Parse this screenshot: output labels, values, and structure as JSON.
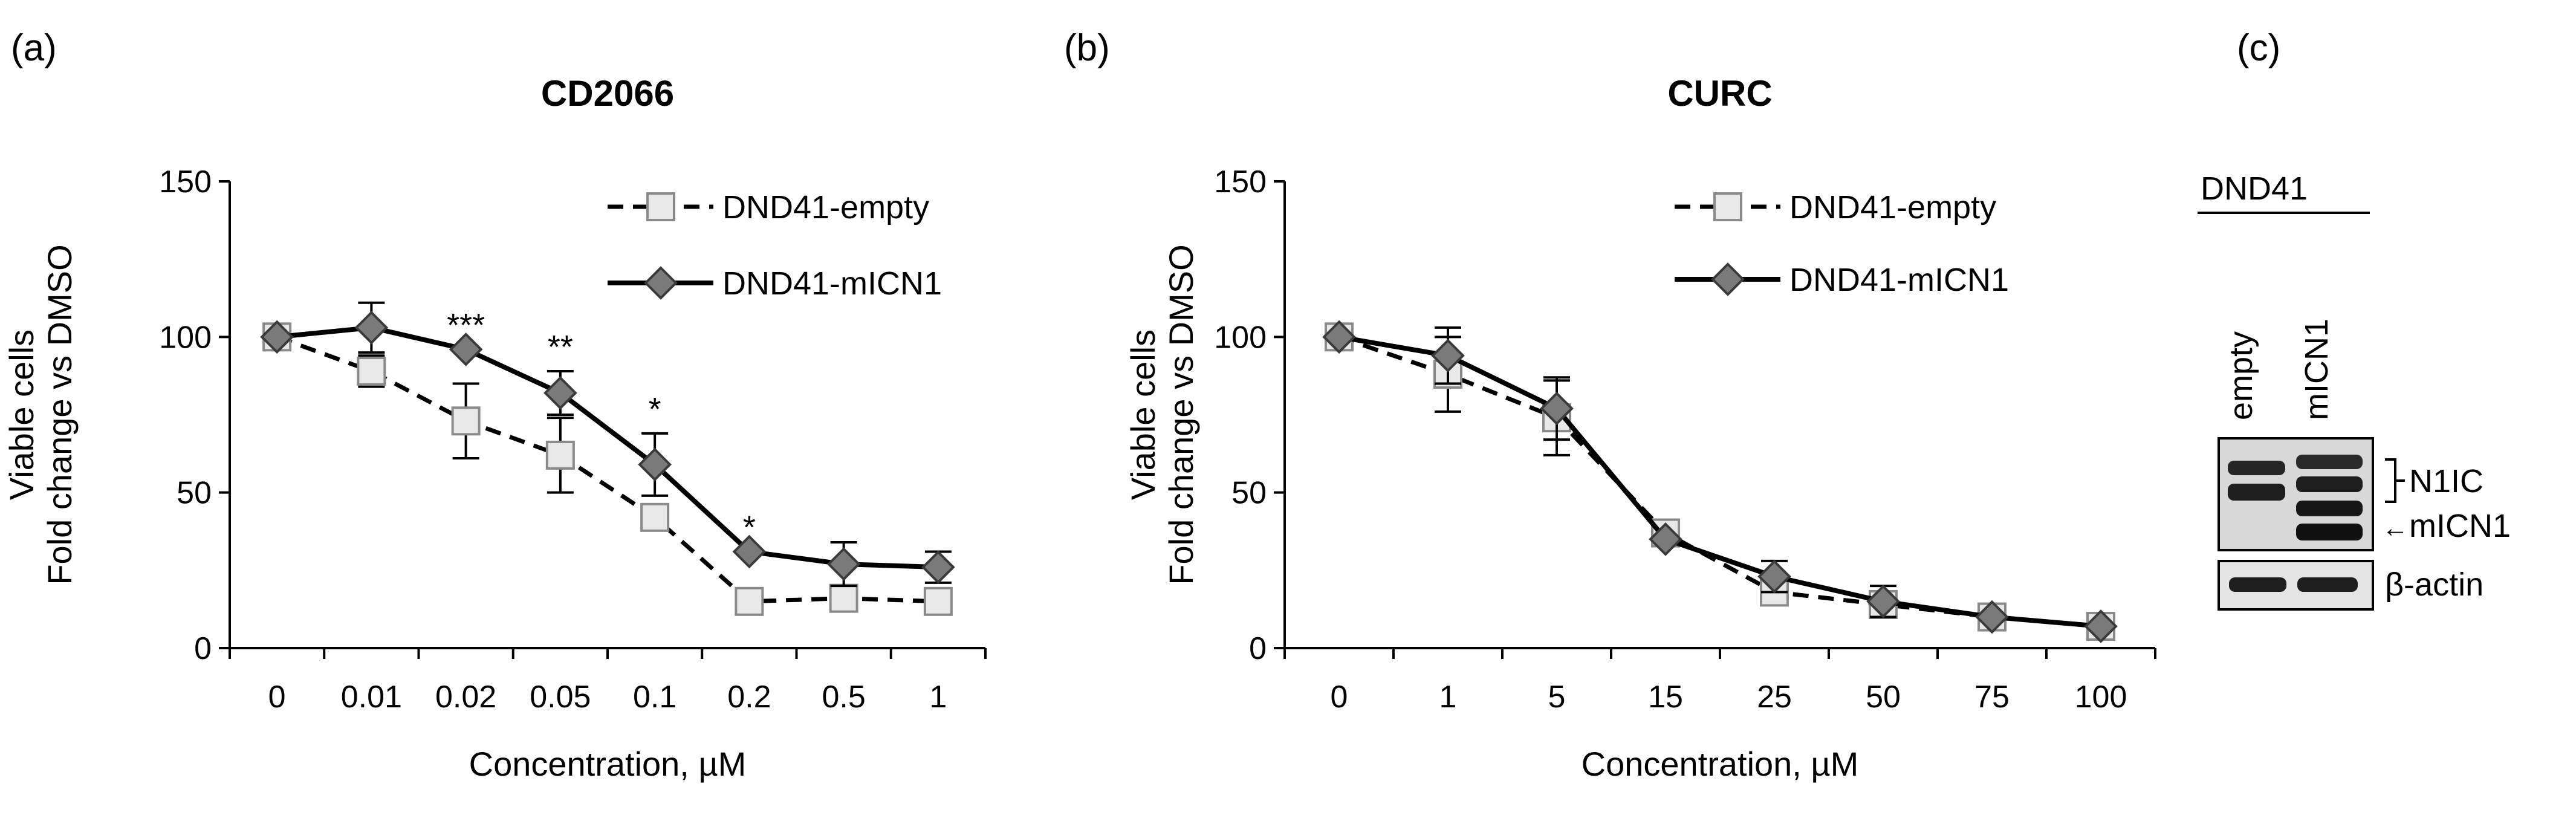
{
  "figure": {
    "panel_a_label": "(a)",
    "panel_b_label": "(b)",
    "panel_c_label": "(c)"
  },
  "chart_data": [
    {
      "type": "line",
      "panel": "a",
      "title": "CD2066",
      "xlabel": "Concentration, µM",
      "ylabel_line1": "Viable cells",
      "ylabel_line2": "Fold change vs DMSO",
      "categories": [
        "0",
        "0.01",
        "0.02",
        "0.05",
        "0.1",
        "0.2",
        "0.5",
        "1"
      ],
      "ylim": [
        0,
        150
      ],
      "yticks": [
        "0",
        "50",
        "100",
        "150"
      ],
      "legend_position": "top-right",
      "series": [
        {
          "name": "DND41-empty",
          "style": "dashed",
          "marker": "square",
          "values": [
            100,
            89,
            73,
            62,
            42,
            15,
            16,
            15
          ],
          "errors": [
            0,
            5,
            12,
            12,
            0,
            0,
            0,
            0
          ]
        },
        {
          "name": "DND41-mICN1",
          "style": "solid",
          "marker": "diamond",
          "values": [
            100,
            103,
            96,
            82,
            59,
            31,
            27,
            26
          ],
          "errors": [
            0,
            8,
            0,
            7,
            10,
            0,
            7,
            5
          ]
        }
      ],
      "annotations": [
        {
          "index": 2,
          "text": "***"
        },
        {
          "index": 3,
          "text": "**"
        },
        {
          "index": 4,
          "text": "*"
        },
        {
          "index": 5,
          "text": "*"
        }
      ]
    },
    {
      "type": "line",
      "panel": "b",
      "title": "CURC",
      "xlabel": "Concentration, µM",
      "ylabel_line1": "Viable cells",
      "ylabel_line2": "Fold change vs DMSO",
      "categories": [
        "0",
        "1",
        "5",
        "15",
        "25",
        "50",
        "75",
        "100"
      ],
      "ylim": [
        0,
        150
      ],
      "yticks": [
        "0",
        "50",
        "100",
        "150"
      ],
      "legend_position": "top-right",
      "series": [
        {
          "name": "DND41-empty",
          "style": "dashed",
          "marker": "square",
          "values": [
            100,
            88,
            74,
            37,
            18,
            14,
            10,
            7
          ],
          "errors": [
            0,
            12,
            12,
            0,
            0,
            0,
            0,
            0
          ]
        },
        {
          "name": "DND41-mICN1",
          "style": "solid",
          "marker": "diamond",
          "values": [
            100,
            94,
            77,
            35,
            23,
            15,
            10,
            7
          ],
          "errors": [
            0,
            9,
            10,
            0,
            5,
            5,
            0,
            0
          ]
        }
      ],
      "annotations": []
    }
  ],
  "blot": {
    "cell_line": "DND41",
    "lanes": [
      "empty",
      "mICN1"
    ],
    "band_labels": {
      "n1ic": "N1IC",
      "micn1": "mICN1",
      "actin": "β-actin"
    },
    "arrow": "←"
  }
}
